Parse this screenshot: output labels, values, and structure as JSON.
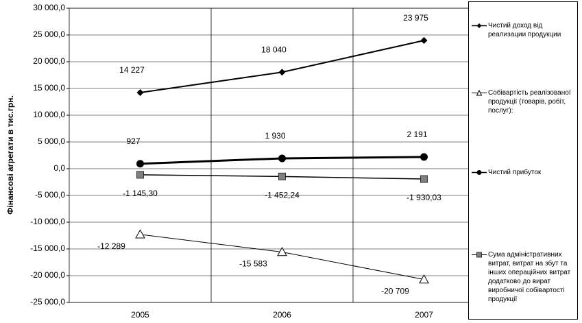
{
  "chart_data": {
    "type": "line",
    "y_label": "Фінансові агрегати в тис.грн.",
    "categories": [
      "2005",
      "2006",
      "2007"
    ],
    "ylim": [
      -25000,
      30000
    ],
    "yticks": [
      {
        "value": 30000,
        "label": "30 000,0"
      },
      {
        "value": 25000,
        "label": "25 000,0"
      },
      {
        "value": 20000,
        "label": "20 000,0"
      },
      {
        "value": 15000,
        "label": "15 000,0"
      },
      {
        "value": 10000,
        "label": "10 000,0"
      },
      {
        "value": 5000,
        "label": "5 000,0"
      },
      {
        "value": 0,
        "label": "0,0"
      },
      {
        "value": -5000,
        "label": "-5 000,0"
      },
      {
        "value": -10000,
        "label": "-10 000,0"
      },
      {
        "value": -15000,
        "label": "-15 000,0"
      },
      {
        "value": -20000,
        "label": "-20 000,0"
      },
      {
        "value": -25000,
        "label": "-25 000,0"
      }
    ],
    "grid": true,
    "series": [
      {
        "name": "Чистий доход  від реализации продукции",
        "color": "#000000",
        "marker": "diamond",
        "values": [
          14227,
          18040,
          23975
        ],
        "value_labels": [
          "14 227",
          "18 040",
          "23 975"
        ]
      },
      {
        "name": "Собівартість реалізованої продукції (товарів, робіт, послуг):",
        "color": "#000000",
        "marker": "triangle",
        "values": [
          -12289,
          -15583,
          -20709
        ],
        "value_labels": [
          "-12 289",
          "-15 583",
          "-20 709"
        ]
      },
      {
        "name": "Чистий прибуток",
        "color": "#000000",
        "marker": "circle",
        "values": [
          927,
          1930,
          2191
        ],
        "value_labels": [
          "927",
          "1 930",
          "2 191"
        ]
      },
      {
        "name": "Сума адміністративних витрат, витрат на збут та інших операційних витрат додатково до вират виробничої собівартості продукції",
        "color": "#808080",
        "marker": "square",
        "values": [
          -1145.3,
          -1452.24,
          -1930.03
        ],
        "value_labels": [
          "-1 145,30",
          "-1 452,24",
          "-1 930,03"
        ]
      }
    ]
  }
}
